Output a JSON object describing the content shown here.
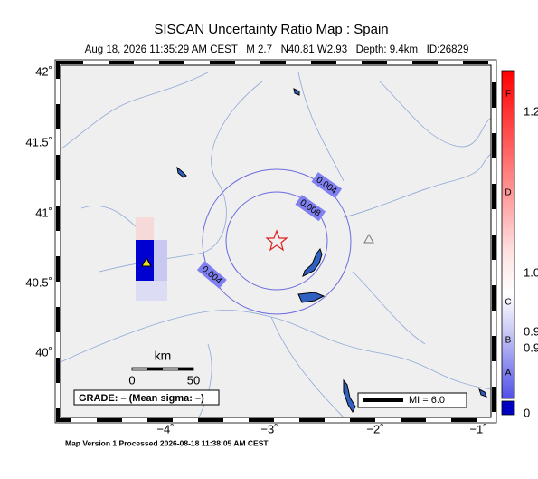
{
  "header": {
    "title": "SISCAN Uncertainty Ratio Map : Spain",
    "subtitle": "Aug 18, 2026 11:35:29 AM CEST   M 2.7   N40.81 W2.93   Depth: 9.4km   ID:26829"
  },
  "map": {
    "y_labels": [
      "42˚",
      "41.5˚",
      "41˚",
      "40.5˚",
      "40˚"
    ],
    "x_labels": [
      "−4˚",
      "−3˚",
      "−2˚",
      "−1˚"
    ],
    "contour_labels": [
      "0.004",
      "0.008",
      "0.004"
    ],
    "scale": {
      "unit": "km",
      "start": "0",
      "end": "50"
    },
    "grade": "GRADE: – (Mean sigma: –)",
    "legend": "MI = 6.0"
  },
  "colorbar": {
    "letters": [
      "F",
      "D",
      "C",
      "B",
      "A"
    ],
    "values": [
      "1.2",
      "1.0",
      "0.9",
      "0.9",
      "0"
    ]
  },
  "footer": "Map Version 1 Processed 2026-08-18 11:38:05 AM CEST"
}
